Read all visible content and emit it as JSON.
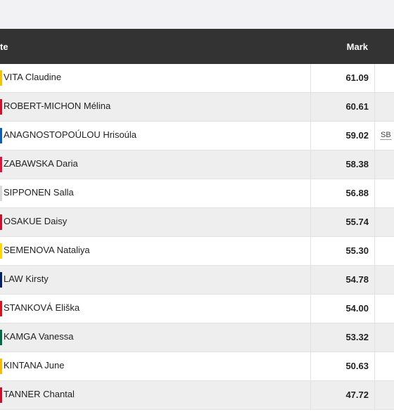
{
  "header": {
    "athlete_label": "te",
    "mark_label": "Mark"
  },
  "rows": [
    {
      "name": "VITA Claudine",
      "mark": "61.09",
      "note": "",
      "flag_color": "#f4c300"
    },
    {
      "name": "ROBERT-MICHON Mélina",
      "mark": "60.61",
      "note": "",
      "flag_color": "#d0102b"
    },
    {
      "name": "ANAGNOSTOPOÚLOU Hrisoúla",
      "mark": "59.02",
      "note": "SB",
      "flag_color": "#0d5eaf"
    },
    {
      "name": "ZABAWSKA Daria",
      "mark": "58.38",
      "note": "",
      "flag_color": "#dc143c"
    },
    {
      "name": "SIPPONEN Salla",
      "mark": "56.88",
      "note": "",
      "flag_color": "#d8d8d8"
    },
    {
      "name": "OSAKUE Daisy",
      "mark": "55.74",
      "note": "",
      "flag_color": "#c8102e"
    },
    {
      "name": "SEMENOVA Nataliya",
      "mark": "55.30",
      "note": "",
      "flag_color": "#ffd500"
    },
    {
      "name": "LAW Kirsty",
      "mark": "54.78",
      "note": "",
      "flag_color": "#012169"
    },
    {
      "name": "STANKOVÁ Eliška",
      "mark": "54.00",
      "note": "",
      "flag_color": "#d7141a"
    },
    {
      "name": "KAMGA Vanessa",
      "mark": "53.32",
      "note": "",
      "flag_color": "#006a44"
    },
    {
      "name": "KINTANA June",
      "mark": "50.63",
      "note": "",
      "flag_color": "#f1bf00"
    },
    {
      "name": "TANNER Chantal",
      "mark": "47.72",
      "note": "",
      "flag_color": "#c8102e"
    }
  ]
}
